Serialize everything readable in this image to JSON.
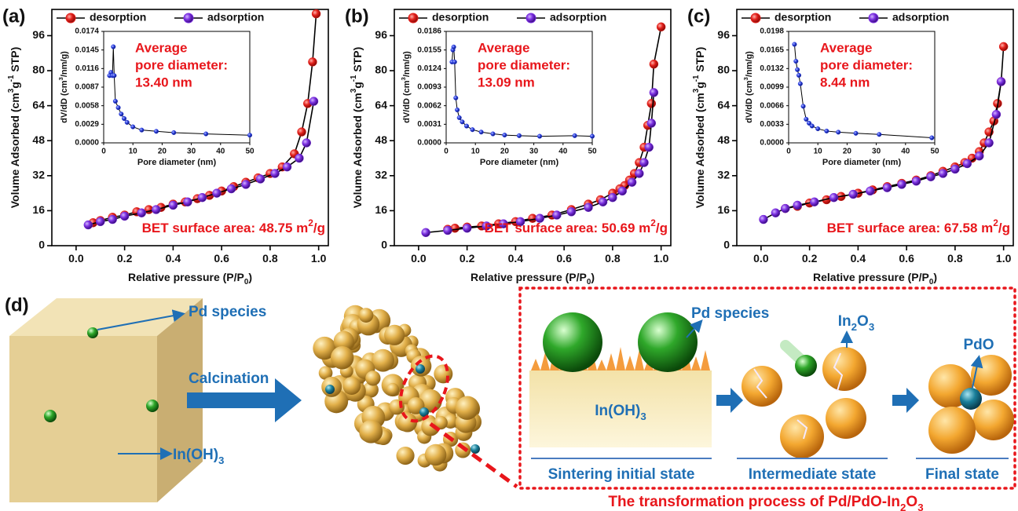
{
  "chart_data": [
    {
      "type": "line",
      "panel": "(a)",
      "xlabel": [
        "Relative pressure (P/P",
        {
          "sub": "0"
        },
        ")"
      ],
      "ylabel": [
        "Volume Adsorbed (cm",
        {
          "sup": "3"
        },
        "g",
        {
          "sup": "-1"
        },
        " STP)"
      ],
      "xlim": [
        -0.1,
        1.04
      ],
      "ylim": [
        0,
        108
      ],
      "xticks": [
        {
          "value": 0,
          "label": "0.0"
        },
        0.2,
        0.4,
        0.6,
        0.8,
        {
          "value": 1,
          "label": "1.0"
        }
      ],
      "yticks": [
        0,
        16,
        32,
        48,
        64,
        80,
        96
      ],
      "annotation": [
        "BET surface area: 48.75 m",
        {
          "sup": "2"
        },
        "/g"
      ],
      "series": [
        {
          "name": "desorption",
          "color": "#e3201b",
          "x": [
            0.99,
            0.975,
            0.955,
            0.93,
            0.9,
            0.85,
            0.8,
            0.75,
            0.7,
            0.65,
            0.6,
            0.55,
            0.5,
            0.45,
            0.4,
            0.35,
            0.3,
            0.25,
            0.2,
            0.15,
            0.1,
            0.07
          ],
          "values": [
            106,
            84,
            65,
            52,
            42,
            36,
            33,
            31,
            29,
            27,
            25,
            23,
            21.5,
            20,
            19,
            17.5,
            16.5,
            15.5,
            14,
            13,
            11.5,
            10.5
          ]
        },
        {
          "name": "adsorption",
          "color": "#7b2fe0",
          "x": [
            0.05,
            0.1,
            0.15,
            0.2,
            0.27,
            0.33,
            0.4,
            0.46,
            0.52,
            0.58,
            0.64,
            0.7,
            0.76,
            0.82,
            0.87,
            0.92,
            0.95,
            0.98
          ],
          "values": [
            9.5,
            11,
            12,
            13.5,
            15,
            16.5,
            18.5,
            20,
            22,
            24,
            26,
            28,
            30.5,
            33,
            36,
            40,
            47,
            66
          ]
        }
      ],
      "inset": {
        "type": "line",
        "xlabel": "Pore diameter (nm)",
        "ylabel": [
          "dV/dD (cm",
          {
            "sup": "3"
          },
          "/nm/g)"
        ],
        "xlim": [
          0,
          50
        ],
        "ylim": [
          0,
          0.0174
        ],
        "xticks": [
          0,
          10,
          20,
          30,
          40,
          50
        ],
        "yticks": [
          {
            "value": 0,
            "label": "0.0000"
          },
          0.0029,
          0.0058,
          0.0087,
          0.0116,
          0.0145,
          0.0174
        ],
        "annotation": [
          "Average",
          "pore diameter:",
          "13.40 nm"
        ],
        "series": [
          {
            "color": "#2b3fe0",
            "x": [
              2,
              2.5,
              3,
              3.3,
              3.6,
              4,
              5,
              6,
              7,
              8,
              10,
              13,
              18,
              24,
              35,
              50
            ],
            "values": [
              0.0105,
              0.011,
              0.0105,
              0.015,
              0.0105,
              0.0065,
              0.0055,
              0.0045,
              0.0038,
              0.0032,
              0.0025,
              0.002,
              0.0018,
              0.0016,
              0.0014,
              0.0012
            ]
          }
        ]
      }
    },
    {
      "type": "line",
      "panel": "(b)",
      "xlabel": [
        "Relative pressure (P/P",
        {
          "sub": "0"
        },
        ")"
      ],
      "ylabel": [
        "Volume Adsorbed (cm",
        {
          "sup": "3"
        },
        "g",
        {
          "sup": "-1"
        },
        " STP)"
      ],
      "xlim": [
        -0.1,
        1.04
      ],
      "ylim": [
        0,
        108
      ],
      "xticks": [
        {
          "value": 0,
          "label": "0.0"
        },
        0.2,
        0.4,
        0.6,
        0.8,
        {
          "value": 1,
          "label": "1.0"
        }
      ],
      "yticks": [
        0,
        16,
        32,
        48,
        64,
        80,
        96
      ],
      "annotation": [
        "BET surface area: 50.69 m",
        {
          "sup": "2"
        },
        "/g"
      ],
      "series": [
        {
          "name": "desorption",
          "color": "#e3201b",
          "x": [
            1.0,
            0.97,
            0.96,
            0.945,
            0.93,
            0.91,
            0.89,
            0.87,
            0.85,
            0.83,
            0.8,
            0.75,
            0.7,
            0.63,
            0.55,
            0.47,
            0.4,
            0.33,
            0.26,
            0.2,
            0.15,
            0.12
          ],
          "values": [
            100,
            83,
            65,
            55,
            45,
            38,
            33,
            30,
            27.5,
            26,
            24,
            21,
            19,
            16.5,
            14,
            12.5,
            11,
            10,
            9,
            8.5,
            8,
            7.5
          ]
        },
        {
          "name": "adsorption",
          "color": "#7b2fe0",
          "x": [
            0.03,
            0.12,
            0.2,
            0.28,
            0.35,
            0.42,
            0.5,
            0.57,
            0.63,
            0.7,
            0.76,
            0.8,
            0.84,
            0.88,
            0.91,
            0.93,
            0.95,
            0.96,
            0.97
          ],
          "values": [
            6,
            7,
            8,
            9,
            10,
            11,
            12.5,
            14,
            15.5,
            17.5,
            20,
            22,
            25,
            29,
            33,
            38,
            45,
            56,
            70
          ]
        }
      ],
      "inset": {
        "type": "line",
        "xlabel": "Pore diameter (nm)",
        "ylabel": [
          "dV/dD (cm",
          {
            "sup": "3"
          },
          "/nm/g)"
        ],
        "xlim": [
          0,
          50
        ],
        "ylim": [
          0,
          0.0186
        ],
        "xticks": [
          0,
          10,
          20,
          30,
          40,
          50
        ],
        "yticks": [
          {
            "value": 0,
            "label": "0.0000"
          },
          0.0031,
          0.0062,
          0.0093,
          0.0124,
          0.0155,
          0.0186
        ],
        "annotation": [
          "Average",
          "pore diameter:",
          "13.09 nm"
        ],
        "series": [
          {
            "color": "#2b3fe0",
            "x": [
              2,
              2.3,
              2.6,
              2.9,
              3.3,
              3.8,
              4.5,
              5.5,
              7,
              9,
              12,
              16,
              20,
              25,
              32,
              44,
              50
            ],
            "values": [
              0.0135,
              0.0155,
              0.016,
              0.0135,
              0.0075,
              0.0055,
              0.0042,
              0.0035,
              0.0028,
              0.0022,
              0.0018,
              0.0015,
              0.0013,
              0.0012,
              0.0011,
              0.0012,
              0.0011
            ]
          }
        ]
      }
    },
    {
      "type": "line",
      "panel": "(c)",
      "xlabel": [
        "Relative pressure (P/P",
        {
          "sub": "0"
        },
        ")"
      ],
      "ylabel": [
        "Volume Adsorbed (cm",
        {
          "sup": "3"
        },
        "g",
        {
          "sup": "-1"
        },
        " STP)"
      ],
      "xlim": [
        -0.1,
        1.04
      ],
      "ylim": [
        0,
        108
      ],
      "xticks": [
        {
          "value": 0,
          "label": "0.0"
        },
        0.2,
        0.4,
        0.6,
        0.8,
        {
          "value": 1,
          "label": "1.0"
        }
      ],
      "yticks": [
        0,
        16,
        32,
        48,
        64,
        80,
        96
      ],
      "annotation": [
        "BET surface area: 67.58 m",
        {
          "sup": "2"
        },
        "/g"
      ],
      "series": [
        {
          "name": "desorption",
          "color": "#e3201b",
          "x": [
            1.0,
            0.99,
            0.975,
            0.96,
            0.94,
            0.92,
            0.9,
            0.87,
            0.84,
            0.8,
            0.75,
            0.7,
            0.64,
            0.58,
            0.52,
            0.46,
            0.4,
            0.33,
            0.27,
            0.2,
            0.15,
            0.1
          ],
          "values": [
            91,
            75,
            65,
            57,
            52,
            47,
            43,
            40,
            38,
            36,
            34,
            32,
            30,
            28.5,
            27,
            25.5,
            24,
            22.5,
            21,
            19.5,
            18,
            17
          ]
        },
        {
          "name": "adsorption",
          "color": "#7b2fe0",
          "x": [
            0.01,
            0.06,
            0.1,
            0.15,
            0.22,
            0.3,
            0.38,
            0.45,
            0.52,
            0.58,
            0.64,
            0.7,
            0.75,
            0.8,
            0.85,
            0.9,
            0.94,
            0.97,
            0.99
          ],
          "values": [
            12,
            15,
            17,
            18.5,
            20,
            22,
            23.5,
            25,
            26.5,
            28,
            29.5,
            31.5,
            33,
            35,
            37.5,
            41,
            47,
            60,
            75
          ]
        }
      ],
      "inset": {
        "type": "line",
        "xlabel": "Pore diameter (nm)",
        "ylabel": [
          "dV/dD (cm",
          {
            "sup": "3"
          },
          "/nm/g)"
        ],
        "xlim": [
          0,
          50
        ],
        "ylim": [
          0,
          0.0198
        ],
        "xticks": [
          0,
          10,
          20,
          30,
          40,
          50
        ],
        "yticks": [
          {
            "value": 0,
            "label": "0.0000"
          },
          0.0033,
          0.0066,
          0.0099,
          0.0132,
          0.0165,
          0.0198
        ],
        "annotation": [
          "Average",
          "pore diameter:",
          "8.44 nm"
        ],
        "series": [
          {
            "color": "#2b3fe0",
            "x": [
              2,
              2.5,
              3,
              3.5,
              4,
              5,
              6,
              7,
              8,
              10,
              13,
              17,
              23,
              31,
              49
            ],
            "values": [
              0.0175,
              0.0145,
              0.013,
              0.012,
              0.0105,
              0.0065,
              0.0042,
              0.0035,
              0.003,
              0.0025,
              0.0021,
              0.0019,
              0.0017,
              0.0015,
              0.0009
            ]
          }
        ]
      }
    }
  ],
  "schematic": {
    "panel": "(d)",
    "pd_species": "Pd species",
    "in_oh3": [
      "In(OH)",
      {
        "sub": "3"
      }
    ],
    "calcination": "Calcination",
    "pd_species_2": "Pd species",
    "in2o3": [
      "In",
      {
        "sub": "2"
      },
      "O",
      {
        "sub": "3"
      }
    ],
    "pdo": "PdO",
    "in_oh3_2": [
      "In(OH)",
      {
        "sub": "3"
      }
    ],
    "stage_labels": [
      "Sintering initial state",
      "Intermediate state",
      "Final state"
    ],
    "caption": [
      "The transformation process of Pd/PdO-In",
      {
        "sub": "2"
      },
      "O",
      {
        "sub": "3"
      }
    ]
  }
}
